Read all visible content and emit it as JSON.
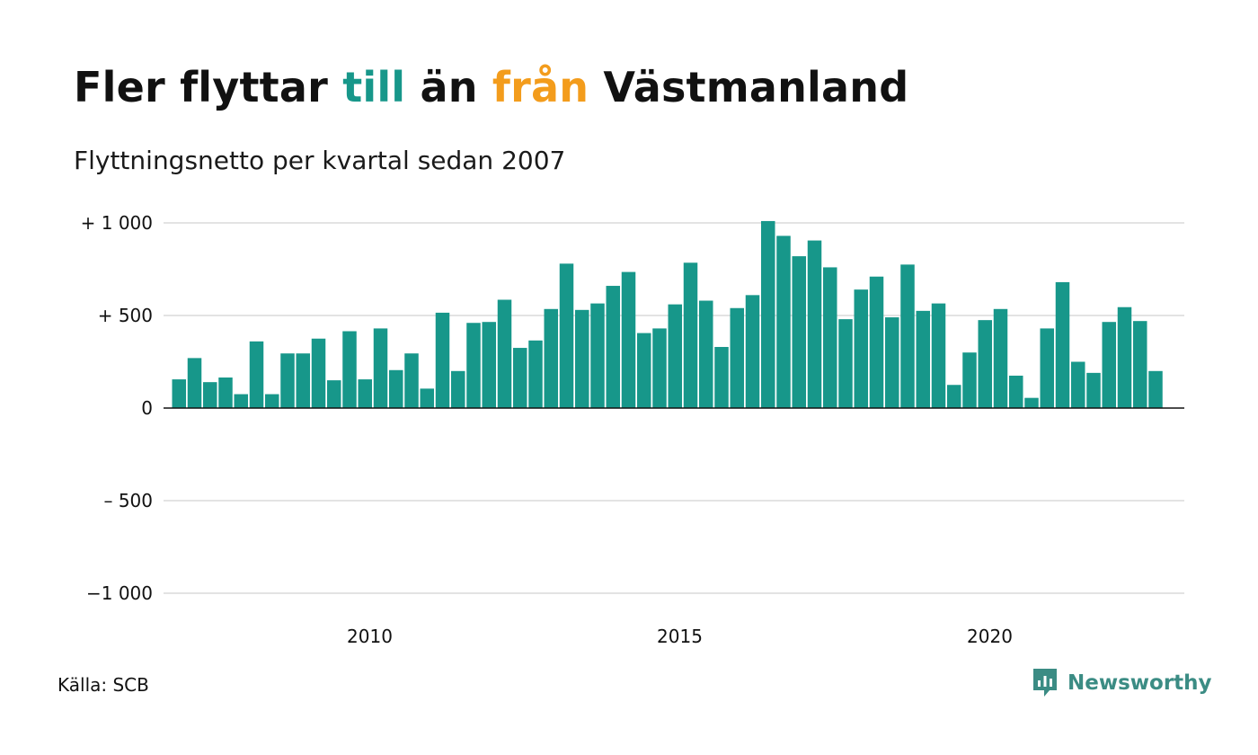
{
  "title": {
    "part1": "Fler flyttar ",
    "till": "till",
    "part2": " än ",
    "fran": "från",
    "part3": " Västmanland"
  },
  "subtitle": "Flyttningsnetto per kvartal sedan 2007",
  "source": "Källa: SCB",
  "brand": {
    "name": "Newsworthy",
    "icon": "newsworthy-logo-icon"
  },
  "colors": {
    "bar": "#17978a",
    "till": "#17978a",
    "fran": "#f39c1c",
    "grid": "#e3e3e3",
    "brand": "#3b8c84"
  },
  "chart_data": {
    "type": "bar",
    "title": "Fler flyttar till än från Västmanland",
    "subtitle": "Flyttningsnetto per kvartal sedan 2007",
    "xlabel": "",
    "ylabel": "",
    "ylim": [
      -1000,
      1000
    ],
    "grid": true,
    "y_ticks": [
      {
        "value": 1000,
        "label": "+ 1 000"
      },
      {
        "value": 500,
        "label": "+   500"
      },
      {
        "value": 0,
        "label": "0"
      },
      {
        "value": -500,
        "label": "–  500"
      },
      {
        "value": -1000,
        "label": "−1 000"
      }
    ],
    "x_ticks": [
      {
        "x": 2010,
        "label": "2010"
      },
      {
        "x": 2015,
        "label": "2015"
      },
      {
        "x": 2020,
        "label": "2020"
      }
    ],
    "categories": [
      "2007 Q1",
      "2007 Q2",
      "2007 Q3",
      "2007 Q4",
      "2008 Q1",
      "2008 Q2",
      "2008 Q3",
      "2008 Q4",
      "2009 Q1",
      "2009 Q2",
      "2009 Q3",
      "2009 Q4",
      "2010 Q1",
      "2010 Q2",
      "2010 Q3",
      "2010 Q4",
      "2011 Q1",
      "2011 Q2",
      "2011 Q3",
      "2011 Q4",
      "2012 Q1",
      "2012 Q2",
      "2012 Q3",
      "2012 Q4",
      "2013 Q1",
      "2013 Q2",
      "2013 Q3",
      "2013 Q4",
      "2014 Q1",
      "2014 Q2",
      "2014 Q3",
      "2014 Q4",
      "2015 Q1",
      "2015 Q2",
      "2015 Q3",
      "2015 Q4",
      "2016 Q1",
      "2016 Q2",
      "2016 Q3",
      "2016 Q4",
      "2017 Q1",
      "2017 Q2",
      "2017 Q3",
      "2017 Q4",
      "2018 Q1",
      "2018 Q2",
      "2018 Q3",
      "2018 Q4",
      "2019 Q1",
      "2019 Q2",
      "2019 Q3",
      "2019 Q4",
      "2020 Q1",
      "2020 Q2",
      "2020 Q3",
      "2020 Q4",
      "2021 Q1",
      "2021 Q2",
      "2021 Q3",
      "2021 Q4",
      "2022 Q1",
      "2022 Q2",
      "2022 Q3",
      "2022 Q4",
      "2023 Q1"
    ],
    "values": [
      155,
      270,
      140,
      165,
      75,
      360,
      75,
      295,
      295,
      375,
      150,
      415,
      155,
      430,
      205,
      295,
      105,
      515,
      200,
      460,
      465,
      585,
      325,
      365,
      535,
      780,
      530,
      565,
      660,
      735,
      405,
      430,
      560,
      785,
      580,
      330,
      540,
      610,
      1010,
      930,
      820,
      905,
      760,
      480,
      640,
      710,
      490,
      775,
      525,
      565,
      125,
      300,
      475,
      535,
      175,
      55,
      430,
      680,
      250,
      190,
      465,
      545,
      470,
      200,
      0
    ]
  }
}
